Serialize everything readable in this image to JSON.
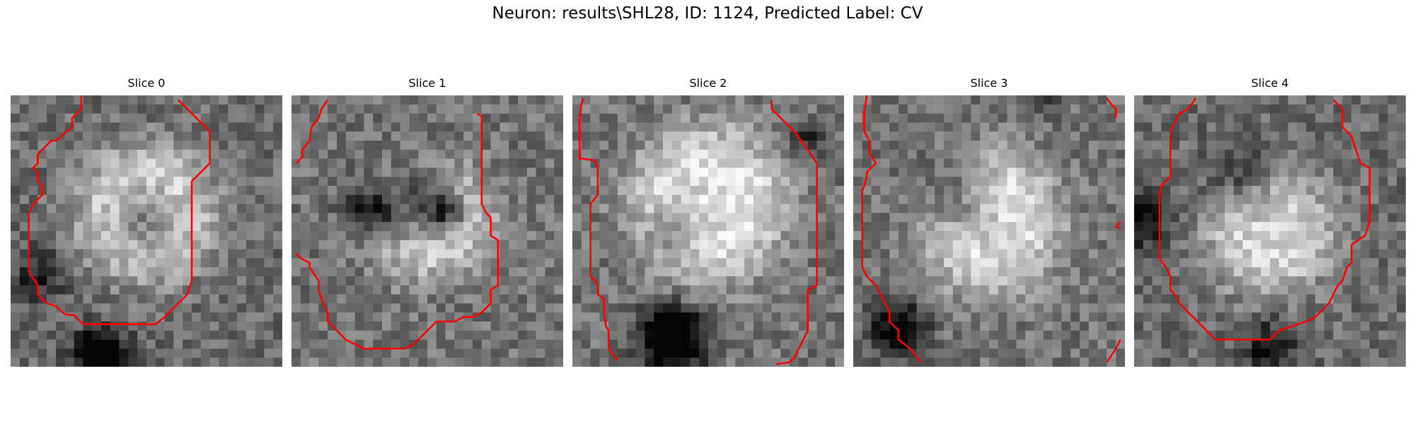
{
  "figure": {
    "title": "Neuron: results\\SHL28, ID: 1124, Predicted Label: CV"
  },
  "panels": [
    {
      "title": "Slice 0"
    },
    {
      "title": "Slice 1"
    },
    {
      "title": "Slice 2"
    },
    {
      "title": "Slice 3"
    },
    {
      "title": "Slice 4"
    }
  ],
  "colors": {
    "contour": "#ff0000",
    "background": "#ffffff"
  }
}
